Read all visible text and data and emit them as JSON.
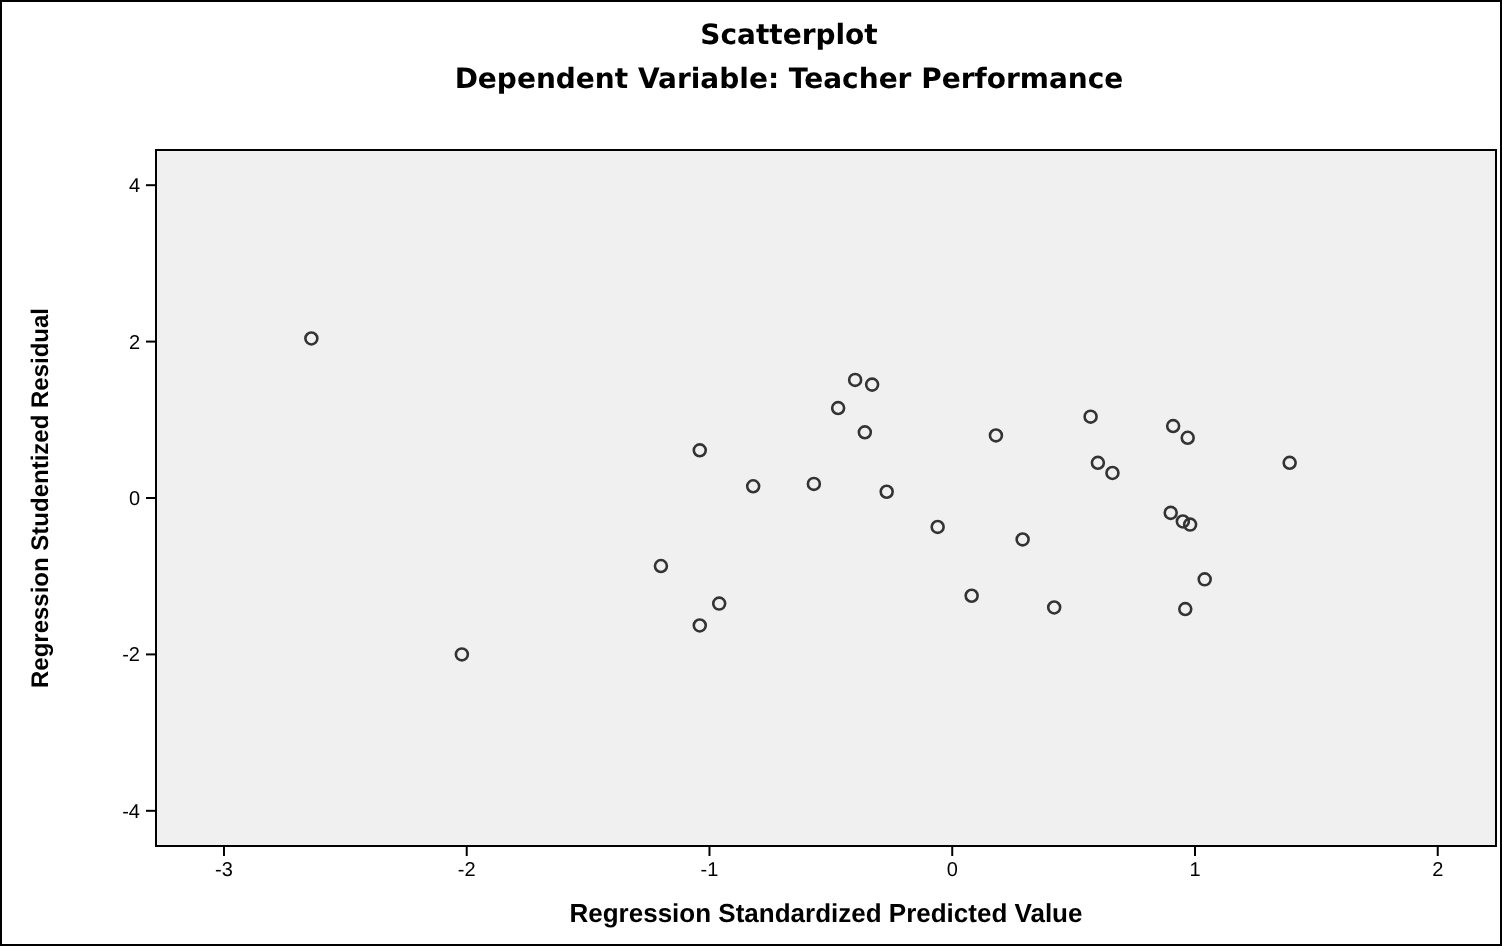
{
  "chart_data": {
    "type": "scatter",
    "title": "Scatterplot",
    "subtitle": "Dependent Variable: Teacher Performance",
    "xlabel": "Regression Standardized Predicted Value",
    "ylabel": "Regression Studentized Residual",
    "marker": "circle",
    "grid": false,
    "xlim": [
      -3.28,
      2.24
    ],
    "ylim": [
      -4.45,
      4.45
    ],
    "xticks": [
      -3,
      -2,
      -1,
      0,
      1,
      2
    ],
    "yticks": [
      -4,
      -2,
      0,
      2,
      4
    ],
    "series": [
      {
        "color": "#333333",
        "x": [
          -2.64,
          -2.02,
          -1.04,
          -0.82,
          -1.2,
          -0.96,
          -1.04,
          -0.4,
          -0.33,
          -0.47,
          -0.36,
          -0.57,
          -0.27,
          -0.06,
          0.18,
          0.29,
          0.08,
          0.42,
          0.57,
          0.6,
          0.66,
          0.91,
          0.97,
          0.9,
          0.95,
          0.98,
          1.04,
          0.96,
          1.39
        ],
        "values": [
          2.04,
          -2.0,
          0.61,
          0.15,
          -0.87,
          -1.35,
          -1.63,
          1.51,
          1.45,
          1.15,
          0.84,
          0.18,
          0.08,
          -0.37,
          0.8,
          -0.53,
          -1.25,
          -1.4,
          1.04,
          0.45,
          0.32,
          0.92,
          0.77,
          -0.19,
          -0.3,
          -0.34,
          -1.04,
          -1.42,
          0.45
        ]
      }
    ]
  }
}
